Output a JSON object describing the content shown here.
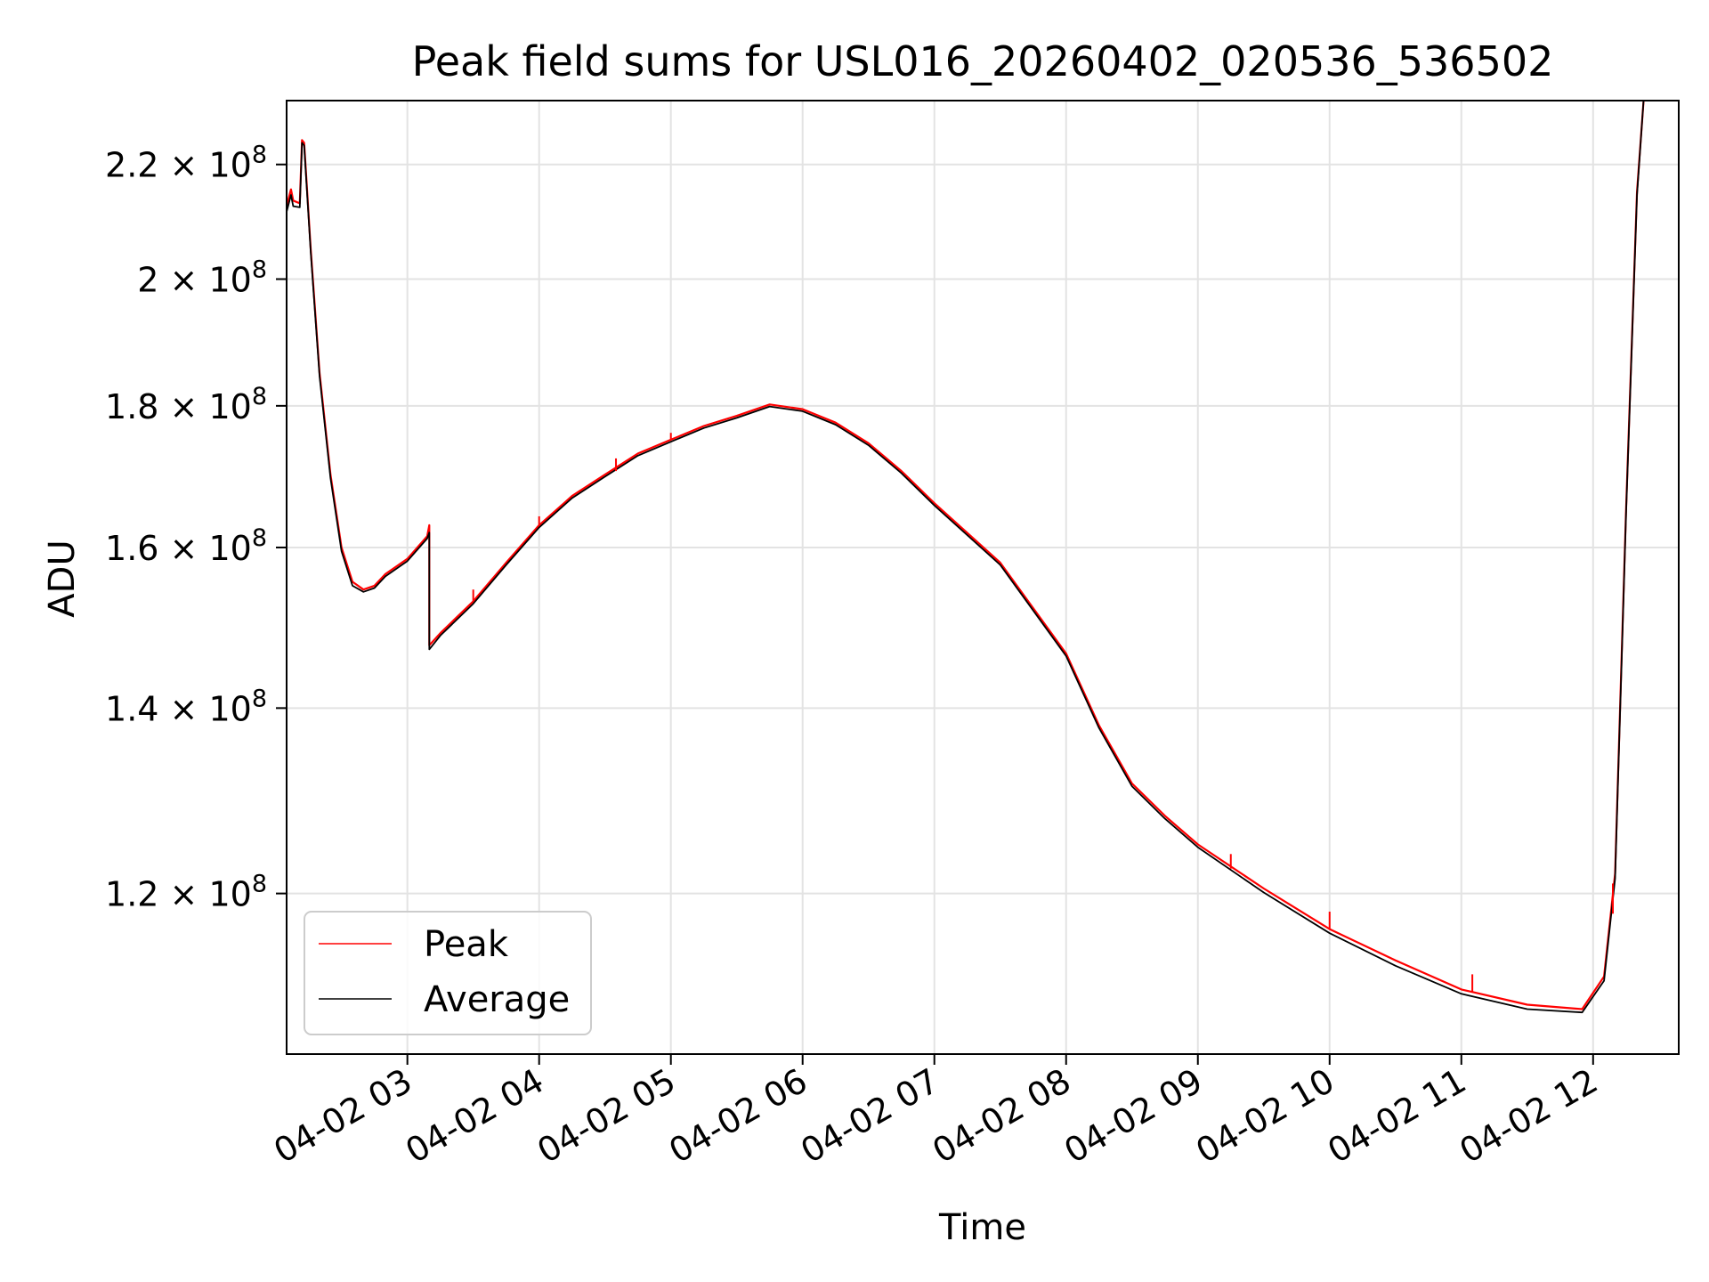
{
  "chart_data": {
    "type": "line",
    "title": "Peak field sums for USL016_20260402_020536_536502",
    "xlabel": "Time",
    "ylabel": "ADU",
    "yscale": "log",
    "grid": true,
    "legend_position": "lower-left",
    "xlim": [
      "2026-04-02 02:05",
      "2026-04-02 12:39"
    ],
    "ylim": [
      105000000,
      232000000
    ],
    "x_ticks": [
      {
        "value": "2026-04-02 03:00",
        "label": "04-02 03"
      },
      {
        "value": "2026-04-02 04:00",
        "label": "04-02 04"
      },
      {
        "value": "2026-04-02 05:00",
        "label": "04-02 05"
      },
      {
        "value": "2026-04-02 06:00",
        "label": "04-02 06"
      },
      {
        "value": "2026-04-02 07:00",
        "label": "04-02 07"
      },
      {
        "value": "2026-04-02 08:00",
        "label": "04-02 08"
      },
      {
        "value": "2026-04-02 09:00",
        "label": "04-02 09"
      },
      {
        "value": "2026-04-02 10:00",
        "label": "04-02 10"
      },
      {
        "value": "2026-04-02 11:00",
        "label": "04-02 11"
      },
      {
        "value": "2026-04-02 12:00",
        "label": "04-02 12"
      }
    ],
    "y_ticks": [
      {
        "value": 120000000,
        "mantissa": "1.2",
        "base": "× 10",
        "exp": "8"
      },
      {
        "value": 140000000,
        "mantissa": "1.4",
        "base": "× 10",
        "exp": "8"
      },
      {
        "value": 160000000,
        "mantissa": "1.6",
        "base": "× 10",
        "exp": "8"
      },
      {
        "value": 180000000,
        "mantissa": "1.8",
        "base": "× 10",
        "exp": "8"
      },
      {
        "value": 200000000,
        "mantissa": "2",
        "base": "× 10",
        "exp": "8"
      },
      {
        "value": 220000000,
        "mantissa": "2.2",
        "base": "× 10",
        "exp": "8"
      }
    ],
    "series": [
      {
        "name": "Peak",
        "color": "#ff0000",
        "points": [
          [
            "2026-04-02 02:05",
            212500000
          ],
          [
            "2026-04-02 02:07",
            215500000
          ],
          [
            "2026-04-02 02:08",
            213500000
          ],
          [
            "2026-04-02 02:11",
            213000000
          ],
          [
            "2026-04-02 02:12",
            224500000
          ],
          [
            "2026-04-02 02:13",
            224000000
          ],
          [
            "2026-04-02 02:16",
            205000000
          ],
          [
            "2026-04-02 02:20",
            185000000
          ],
          [
            "2026-04-02 02:25",
            170000000
          ],
          [
            "2026-04-02 02:30",
            160000000
          ],
          [
            "2026-04-02 02:35",
            155500000
          ],
          [
            "2026-04-02 02:40",
            154500000
          ],
          [
            "2026-04-02 02:45",
            155000000
          ],
          [
            "2026-04-02 02:50",
            156500000
          ],
          [
            "2026-04-02 03:00",
            158500000
          ],
          [
            "2026-04-02 03:09",
            161500000
          ],
          [
            "2026-04-02 03:10",
            163000000
          ],
          [
            "2026-04-02 03:10",
            147500000
          ],
          [
            "2026-04-02 03:15",
            149000000
          ],
          [
            "2026-04-02 03:30",
            153000000
          ],
          [
            "2026-04-02 03:45",
            158000000
          ],
          [
            "2026-04-02 04:00",
            163000000
          ],
          [
            "2026-04-02 04:15",
            167000000
          ],
          [
            "2026-04-02 04:30",
            170000000
          ],
          [
            "2026-04-02 04:45",
            173000000
          ],
          [
            "2026-04-02 05:00",
            175000000
          ],
          [
            "2026-04-02 05:15",
            177000000
          ],
          [
            "2026-04-02 05:30",
            178500000
          ],
          [
            "2026-04-02 05:45",
            180200000
          ],
          [
            "2026-04-02 06:00",
            179500000
          ],
          [
            "2026-04-02 06:15",
            177500000
          ],
          [
            "2026-04-02 06:30",
            174500000
          ],
          [
            "2026-04-02 06:45",
            170500000
          ],
          [
            "2026-04-02 07:00",
            166000000
          ],
          [
            "2026-04-02 07:30",
            158000000
          ],
          [
            "2026-04-02 08:00",
            146500000
          ],
          [
            "2026-04-02 08:15",
            138000000
          ],
          [
            "2026-04-02 08:30",
            131500000
          ],
          [
            "2026-04-02 08:45",
            128000000
          ],
          [
            "2026-04-02 09:00",
            125000000
          ],
          [
            "2026-04-02 09:30",
            120500000
          ],
          [
            "2026-04-02 10:00",
            116500000
          ],
          [
            "2026-04-02 10:30",
            113500000
          ],
          [
            "2026-04-02 11:00",
            110800000
          ],
          [
            "2026-04-02 11:30",
            109400000
          ],
          [
            "2026-04-02 11:55",
            109000000
          ],
          [
            "2026-04-02 12:05",
            112000000
          ],
          [
            "2026-04-02 12:10",
            122000000
          ],
          [
            "2026-04-02 12:15",
            165000000
          ],
          [
            "2026-04-02 12:20",
            215000000
          ],
          [
            "2026-04-02 12:23",
            232000000
          ]
        ]
      },
      {
        "name": "Average",
        "color": "#000000",
        "points": [
          [
            "2026-04-02 02:05",
            211500000
          ],
          [
            "2026-04-02 02:07",
            214500000
          ],
          [
            "2026-04-02 02:08",
            212500000
          ],
          [
            "2026-04-02 02:11",
            212300000
          ],
          [
            "2026-04-02 02:12",
            224000000
          ],
          [
            "2026-04-02 02:13",
            223500000
          ],
          [
            "2026-04-02 02:16",
            204500000
          ],
          [
            "2026-04-02 02:20",
            184500000
          ],
          [
            "2026-04-02 02:25",
            169500000
          ],
          [
            "2026-04-02 02:30",
            159500000
          ],
          [
            "2026-04-02 02:35",
            155000000
          ],
          [
            "2026-04-02 02:40",
            154200000
          ],
          [
            "2026-04-02 02:45",
            154700000
          ],
          [
            "2026-04-02 02:50",
            156200000
          ],
          [
            "2026-04-02 03:00",
            158200000
          ],
          [
            "2026-04-02 03:09",
            161200000
          ],
          [
            "2026-04-02 03:10",
            162000000
          ],
          [
            "2026-04-02 03:10",
            147000000
          ],
          [
            "2026-04-02 03:15",
            148700000
          ],
          [
            "2026-04-02 03:30",
            152700000
          ],
          [
            "2026-04-02 03:45",
            157700000
          ],
          [
            "2026-04-02 04:00",
            162700000
          ],
          [
            "2026-04-02 04:15",
            166700000
          ],
          [
            "2026-04-02 04:30",
            169700000
          ],
          [
            "2026-04-02 04:45",
            172700000
          ],
          [
            "2026-04-02 05:00",
            174700000
          ],
          [
            "2026-04-02 05:15",
            176700000
          ],
          [
            "2026-04-02 05:30",
            178200000
          ],
          [
            "2026-04-02 05:45",
            179900000
          ],
          [
            "2026-04-02 06:00",
            179200000
          ],
          [
            "2026-04-02 06:15",
            177200000
          ],
          [
            "2026-04-02 06:30",
            174200000
          ],
          [
            "2026-04-02 06:45",
            170200000
          ],
          [
            "2026-04-02 07:00",
            165700000
          ],
          [
            "2026-04-02 07:30",
            157700000
          ],
          [
            "2026-04-02 08:00",
            146200000
          ],
          [
            "2026-04-02 08:15",
            137700000
          ],
          [
            "2026-04-02 08:30",
            131200000
          ],
          [
            "2026-04-02 08:45",
            127700000
          ],
          [
            "2026-04-02 09:00",
            124700000
          ],
          [
            "2026-04-02 09:30",
            120100000
          ],
          [
            "2026-04-02 10:00",
            116100000
          ],
          [
            "2026-04-02 10:30",
            113000000
          ],
          [
            "2026-04-02 11:00",
            110400000
          ],
          [
            "2026-04-02 11:30",
            109000000
          ],
          [
            "2026-04-02 11:55",
            108700000
          ],
          [
            "2026-04-02 12:05",
            111600000
          ],
          [
            "2026-04-02 12:10",
            121500000
          ],
          [
            "2026-04-02 12:15",
            164500000
          ],
          [
            "2026-04-02 12:20",
            214500000
          ],
          [
            "2026-04-02 12:23",
            232000000
          ]
        ]
      }
    ],
    "peak_spikes": [
      [
        "2026-04-02 03:30",
        153000000,
        154500000
      ],
      [
        "2026-04-02 04:00",
        163000000,
        164200000
      ],
      [
        "2026-04-02 04:35",
        170500000,
        172300000
      ],
      [
        "2026-04-02 05:00",
        175000000,
        176000000
      ],
      [
        "2026-04-02 09:15",
        122500000,
        124000000
      ],
      [
        "2026-04-02 10:00",
        116500000,
        118200000
      ],
      [
        "2026-04-02 11:05",
        110600000,
        112200000
      ],
      [
        "2026-04-02 12:09",
        118000000,
        121000000
      ]
    ]
  }
}
